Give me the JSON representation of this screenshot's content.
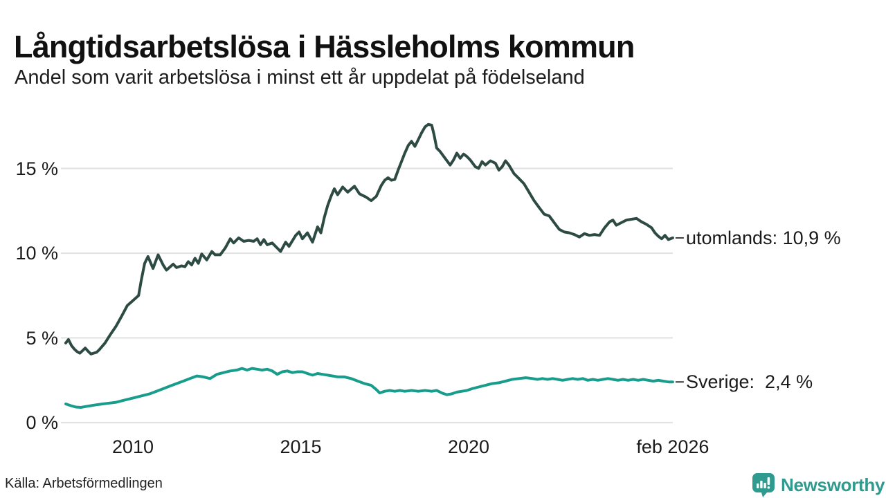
{
  "footer": {
    "source": "Källa: Arbetsförmedlingen",
    "logo_text": "Newsworthy"
  },
  "colors": {
    "utomlands_line": "#2d4a43",
    "sverige_line": "#189c8c",
    "gridline": "#e3e3e3",
    "leader_dash": "#3c3c3c",
    "logo_teal": "#2E9B8E"
  },
  "chart_data": {
    "type": "line",
    "title": "Långtidsarbetslösa i Hässleholms kommun",
    "subtitle": "Andel som varit arbetslösa i minst ett år uppdelat på födelseland",
    "unit": "%",
    "grid": true,
    "legend_position": "end-of-line-labels",
    "x_axis": {
      "range": [
        2008.0,
        2026.08
      ],
      "ticks": [
        {
          "year": 2010,
          "label": "2010"
        },
        {
          "year": 2015,
          "label": "2015"
        },
        {
          "year": 2020,
          "label": "2020"
        },
        {
          "year": 2026.08,
          "label": "feb 2026"
        }
      ]
    },
    "y_axis": {
      "range": [
        0,
        18.6
      ],
      "ticks": [
        {
          "value": 0,
          "label": "0 %"
        },
        {
          "value": 5,
          "label": "5 %"
        },
        {
          "value": 10,
          "label": "10 %"
        },
        {
          "value": 15,
          "label": "15 %"
        }
      ]
    },
    "series": [
      {
        "name": "utomlands",
        "end_label": "utomlands: 10,9 %",
        "last_value": "10,9 %",
        "color": "#2d4a43",
        "points": [
          [
            2008.0,
            4.7
          ],
          [
            2008.08,
            4.9
          ],
          [
            2008.17,
            4.55
          ],
          [
            2008.25,
            4.35
          ],
          [
            2008.33,
            4.2
          ],
          [
            2008.42,
            4.1
          ],
          [
            2008.5,
            4.25
          ],
          [
            2008.58,
            4.4
          ],
          [
            2008.67,
            4.2
          ],
          [
            2008.75,
            4.05
          ],
          [
            2008.83,
            4.1
          ],
          [
            2008.92,
            4.15
          ],
          [
            2009.0,
            4.3
          ],
          [
            2009.17,
            4.7
          ],
          [
            2009.33,
            5.2
          ],
          [
            2009.5,
            5.7
          ],
          [
            2009.67,
            6.3
          ],
          [
            2009.83,
            6.9
          ],
          [
            2010.0,
            7.2
          ],
          [
            2010.17,
            7.5
          ],
          [
            2010.25,
            8.4
          ],
          [
            2010.35,
            9.4
          ],
          [
            2010.45,
            9.8
          ],
          [
            2010.6,
            9.1
          ],
          [
            2010.75,
            9.9
          ],
          [
            2010.9,
            9.3
          ],
          [
            2011.0,
            9.0
          ],
          [
            2011.2,
            9.35
          ],
          [
            2011.3,
            9.15
          ],
          [
            2011.45,
            9.25
          ],
          [
            2011.55,
            9.2
          ],
          [
            2011.65,
            9.5
          ],
          [
            2011.75,
            9.3
          ],
          [
            2011.85,
            9.7
          ],
          [
            2011.95,
            9.4
          ],
          [
            2012.05,
            9.95
          ],
          [
            2012.2,
            9.6
          ],
          [
            2012.35,
            10.1
          ],
          [
            2012.45,
            9.9
          ],
          [
            2012.6,
            9.9
          ],
          [
            2012.75,
            10.3
          ],
          [
            2012.9,
            10.85
          ],
          [
            2013.0,
            10.6
          ],
          [
            2013.15,
            10.9
          ],
          [
            2013.3,
            10.7
          ],
          [
            2013.45,
            10.75
          ],
          [
            2013.6,
            10.7
          ],
          [
            2013.7,
            10.85
          ],
          [
            2013.8,
            10.5
          ],
          [
            2013.9,
            10.8
          ],
          [
            2014.0,
            10.5
          ],
          [
            2014.15,
            10.6
          ],
          [
            2014.3,
            10.3
          ],
          [
            2014.4,
            10.1
          ],
          [
            2014.55,
            10.65
          ],
          [
            2014.65,
            10.4
          ],
          [
            2014.85,
            11.05
          ],
          [
            2014.95,
            11.25
          ],
          [
            2015.05,
            10.85
          ],
          [
            2015.2,
            11.2
          ],
          [
            2015.35,
            10.65
          ],
          [
            2015.5,
            11.55
          ],
          [
            2015.6,
            11.2
          ],
          [
            2015.7,
            12.1
          ],
          [
            2015.8,
            12.8
          ],
          [
            2015.9,
            13.35
          ],
          [
            2016.0,
            13.8
          ],
          [
            2016.1,
            13.45
          ],
          [
            2016.25,
            13.9
          ],
          [
            2016.4,
            13.6
          ],
          [
            2016.6,
            13.95
          ],
          [
            2016.75,
            13.5
          ],
          [
            2016.95,
            13.3
          ],
          [
            2017.1,
            13.1
          ],
          [
            2017.25,
            13.35
          ],
          [
            2017.4,
            14.0
          ],
          [
            2017.5,
            14.3
          ],
          [
            2017.6,
            14.45
          ],
          [
            2017.7,
            14.3
          ],
          [
            2017.8,
            14.35
          ],
          [
            2017.9,
            14.9
          ],
          [
            2018.0,
            15.4
          ],
          [
            2018.1,
            15.9
          ],
          [
            2018.2,
            16.35
          ],
          [
            2018.3,
            16.6
          ],
          [
            2018.4,
            16.3
          ],
          [
            2018.5,
            16.7
          ],
          [
            2018.6,
            17.1
          ],
          [
            2018.7,
            17.45
          ],
          [
            2018.8,
            17.6
          ],
          [
            2018.9,
            17.55
          ],
          [
            2018.97,
            17.0
          ],
          [
            2019.05,
            16.2
          ],
          [
            2019.15,
            16.0
          ],
          [
            2019.3,
            15.6
          ],
          [
            2019.45,
            15.2
          ],
          [
            2019.55,
            15.5
          ],
          [
            2019.65,
            15.9
          ],
          [
            2019.75,
            15.6
          ],
          [
            2019.85,
            15.85
          ],
          [
            2019.95,
            15.7
          ],
          [
            2020.05,
            15.5
          ],
          [
            2020.2,
            15.1
          ],
          [
            2020.3,
            15.0
          ],
          [
            2020.4,
            15.4
          ],
          [
            2020.5,
            15.2
          ],
          [
            2020.65,
            15.45
          ],
          [
            2020.8,
            15.3
          ],
          [
            2020.9,
            14.9
          ],
          [
            2021.0,
            15.1
          ],
          [
            2021.1,
            15.45
          ],
          [
            2021.2,
            15.2
          ],
          [
            2021.35,
            14.7
          ],
          [
            2021.5,
            14.4
          ],
          [
            2021.65,
            14.1
          ],
          [
            2021.8,
            13.6
          ],
          [
            2021.95,
            13.1
          ],
          [
            2022.1,
            12.7
          ],
          [
            2022.25,
            12.3
          ],
          [
            2022.4,
            12.2
          ],
          [
            2022.55,
            11.8
          ],
          [
            2022.7,
            11.4
          ],
          [
            2022.85,
            11.25
          ],
          [
            2023.0,
            11.2
          ],
          [
            2023.15,
            11.1
          ],
          [
            2023.3,
            10.95
          ],
          [
            2023.45,
            11.15
          ],
          [
            2023.6,
            11.05
          ],
          [
            2023.75,
            11.1
          ],
          [
            2023.9,
            11.05
          ],
          [
            2024.05,
            11.5
          ],
          [
            2024.2,
            11.85
          ],
          [
            2024.3,
            11.95
          ],
          [
            2024.4,
            11.65
          ],
          [
            2024.55,
            11.8
          ],
          [
            2024.7,
            11.95
          ],
          [
            2024.85,
            12.0
          ],
          [
            2025.0,
            12.05
          ],
          [
            2025.15,
            11.85
          ],
          [
            2025.3,
            11.7
          ],
          [
            2025.45,
            11.5
          ],
          [
            2025.55,
            11.2
          ],
          [
            2025.65,
            11.0
          ],
          [
            2025.75,
            10.85
          ],
          [
            2025.85,
            11.05
          ],
          [
            2025.95,
            10.8
          ],
          [
            2026.08,
            10.9
          ]
        ]
      },
      {
        "name": "Sverige",
        "end_label": "Sverige:  2,4 %",
        "last_value": "2,4 %",
        "color": "#189c8c",
        "points": [
          [
            2008.0,
            1.1
          ],
          [
            2008.15,
            1.0
          ],
          [
            2008.3,
            0.92
          ],
          [
            2008.45,
            0.9
          ],
          [
            2008.6,
            0.95
          ],
          [
            2008.75,
            1.0
          ],
          [
            2008.9,
            1.05
          ],
          [
            2009.1,
            1.1
          ],
          [
            2009.3,
            1.15
          ],
          [
            2009.5,
            1.2
          ],
          [
            2009.7,
            1.3
          ],
          [
            2009.9,
            1.4
          ],
          [
            2010.1,
            1.5
          ],
          [
            2010.3,
            1.6
          ],
          [
            2010.5,
            1.7
          ],
          [
            2010.7,
            1.85
          ],
          [
            2010.9,
            2.0
          ],
          [
            2011.1,
            2.15
          ],
          [
            2011.3,
            2.3
          ],
          [
            2011.5,
            2.45
          ],
          [
            2011.7,
            2.6
          ],
          [
            2011.9,
            2.75
          ],
          [
            2012.1,
            2.7
          ],
          [
            2012.3,
            2.6
          ],
          [
            2012.5,
            2.85
          ],
          [
            2012.7,
            2.95
          ],
          [
            2012.9,
            3.05
          ],
          [
            2013.1,
            3.1
          ],
          [
            2013.25,
            3.2
          ],
          [
            2013.4,
            3.1
          ],
          [
            2013.55,
            3.2
          ],
          [
            2013.7,
            3.15
          ],
          [
            2013.85,
            3.1
          ],
          [
            2014.0,
            3.15
          ],
          [
            2014.15,
            3.05
          ],
          [
            2014.3,
            2.85
          ],
          [
            2014.45,
            3.0
          ],
          [
            2014.6,
            3.05
          ],
          [
            2014.75,
            2.95
          ],
          [
            2014.9,
            3.0
          ],
          [
            2015.05,
            3.0
          ],
          [
            2015.2,
            2.9
          ],
          [
            2015.35,
            2.8
          ],
          [
            2015.5,
            2.9
          ],
          [
            2015.65,
            2.85
          ],
          [
            2015.8,
            2.8
          ],
          [
            2015.95,
            2.75
          ],
          [
            2016.1,
            2.7
          ],
          [
            2016.3,
            2.7
          ],
          [
            2016.5,
            2.6
          ],
          [
            2016.7,
            2.45
          ],
          [
            2016.9,
            2.3
          ],
          [
            2017.1,
            2.2
          ],
          [
            2017.25,
            1.95
          ],
          [
            2017.35,
            1.75
          ],
          [
            2017.5,
            1.85
          ],
          [
            2017.65,
            1.9
          ],
          [
            2017.8,
            1.85
          ],
          [
            2017.95,
            1.9
          ],
          [
            2018.1,
            1.85
          ],
          [
            2018.3,
            1.9
          ],
          [
            2018.5,
            1.85
          ],
          [
            2018.7,
            1.9
          ],
          [
            2018.9,
            1.85
          ],
          [
            2019.05,
            1.9
          ],
          [
            2019.2,
            1.75
          ],
          [
            2019.35,
            1.65
          ],
          [
            2019.5,
            1.7
          ],
          [
            2019.65,
            1.8
          ],
          [
            2019.8,
            1.85
          ],
          [
            2019.95,
            1.9
          ],
          [
            2020.1,
            2.0
          ],
          [
            2020.3,
            2.1
          ],
          [
            2020.5,
            2.2
          ],
          [
            2020.7,
            2.3
          ],
          [
            2020.9,
            2.35
          ],
          [
            2021.1,
            2.45
          ],
          [
            2021.3,
            2.55
          ],
          [
            2021.5,
            2.6
          ],
          [
            2021.7,
            2.65
          ],
          [
            2021.9,
            2.6
          ],
          [
            2022.05,
            2.55
          ],
          [
            2022.2,
            2.6
          ],
          [
            2022.35,
            2.55
          ],
          [
            2022.5,
            2.6
          ],
          [
            2022.65,
            2.55
          ],
          [
            2022.8,
            2.5
          ],
          [
            2022.95,
            2.55
          ],
          [
            2023.1,
            2.6
          ],
          [
            2023.25,
            2.55
          ],
          [
            2023.4,
            2.6
          ],
          [
            2023.55,
            2.5
          ],
          [
            2023.7,
            2.55
          ],
          [
            2023.85,
            2.5
          ],
          [
            2024.0,
            2.55
          ],
          [
            2024.15,
            2.6
          ],
          [
            2024.3,
            2.55
          ],
          [
            2024.45,
            2.5
          ],
          [
            2024.6,
            2.55
          ],
          [
            2024.75,
            2.5
          ],
          [
            2024.9,
            2.55
          ],
          [
            2025.05,
            2.5
          ],
          [
            2025.2,
            2.55
          ],
          [
            2025.35,
            2.5
          ],
          [
            2025.5,
            2.45
          ],
          [
            2025.65,
            2.5
          ],
          [
            2025.8,
            2.45
          ],
          [
            2025.95,
            2.4
          ],
          [
            2026.08,
            2.4
          ]
        ]
      }
    ]
  }
}
